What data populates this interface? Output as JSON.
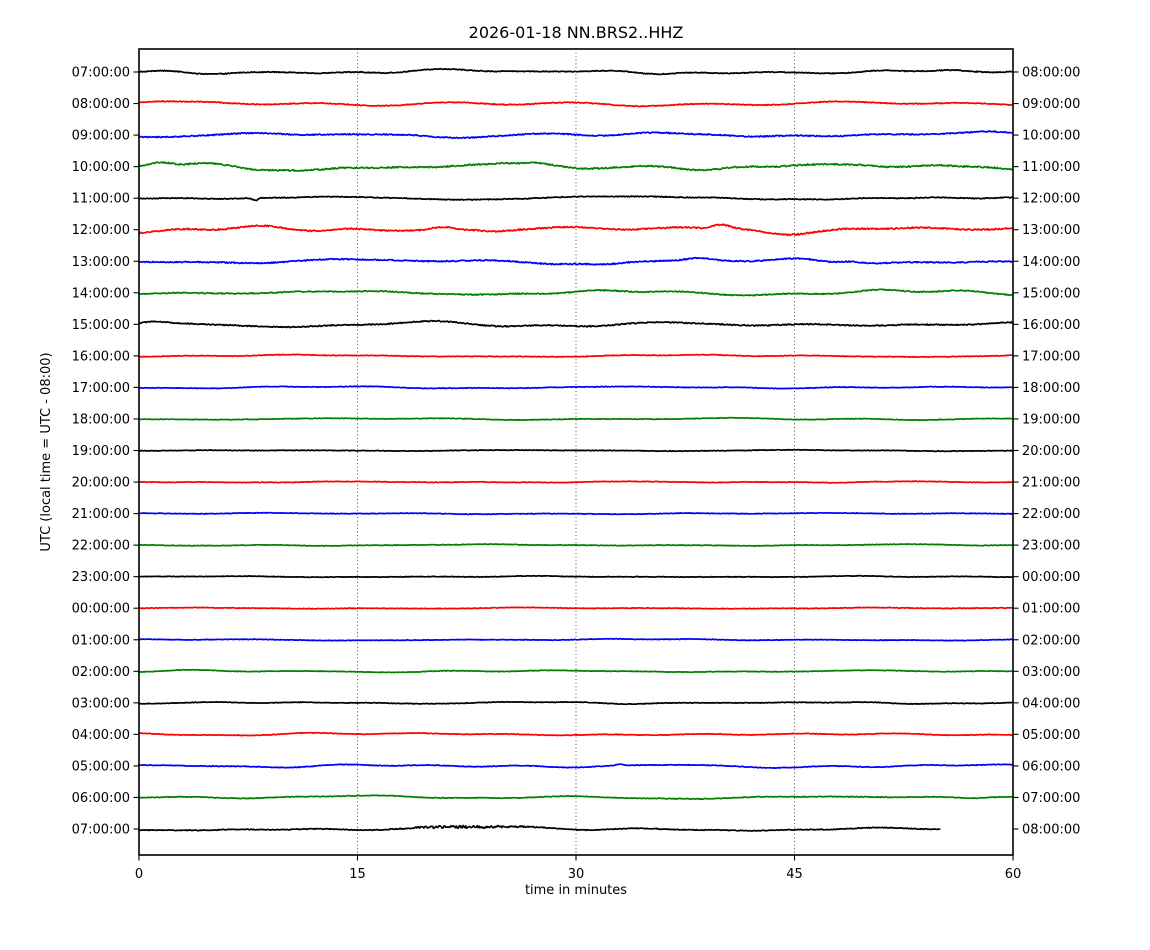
{
  "figure": {
    "title": "2026-01-18 NN.BRS2..HHZ",
    "xlabel": "time in minutes",
    "ylabel": "UTC (local time = UTC - 08:00)"
  },
  "palette": {
    "black": "#000000",
    "red": "#ff0000",
    "blue": "#0000ff",
    "green": "#008000",
    "grid": "#3a3a3a",
    "frame": "#000000",
    "background": "#ffffff"
  },
  "chart_data": {
    "type": "line",
    "subtype": "seismogram_dayplot",
    "title": "2026-01-18 NN.BRS2..HHZ",
    "date": "2026-01-18",
    "station_id": "NN.BRS2..HHZ",
    "xlabel": "time in minutes",
    "ylabel": "UTC (local time = UTC - 08:00)",
    "x_range_minutes": [
      0,
      60
    ],
    "x_ticks": [
      0,
      15,
      30,
      45,
      60
    ],
    "x_gridlines": [
      15,
      30,
      45
    ],
    "minutes_per_row": 60,
    "color_cycle": [
      "black",
      "red",
      "blue",
      "green"
    ],
    "left_axis_meaning": "row start time (UTC)",
    "right_axis_meaning": "row end time (UTC + 01:00)",
    "rows": [
      {
        "utc_left": "07:00:00",
        "utc_right": "08:00:00",
        "color": "black",
        "rel_amp": 2.2,
        "end_min": 60,
        "features": [
          {
            "at": 2,
            "w": 2.0,
            "a": 1.0
          },
          {
            "at": 22,
            "w": 1.5,
            "a": 1.5
          }
        ]
      },
      {
        "utc_left": "08:00:00",
        "utc_right": "09:00:00",
        "color": "red",
        "rel_amp": 2.2,
        "end_min": 60,
        "features": [
          {
            "at": 1,
            "w": 1.5,
            "a": 1.2
          },
          {
            "at": 30,
            "w": 8.0,
            "a": -1.0
          }
        ]
      },
      {
        "utc_left": "09:00:00",
        "utc_right": "10:00:00",
        "color": "blue",
        "rel_amp": 2.8,
        "end_min": 60,
        "features": [
          {
            "at": 40,
            "w": 2.0,
            "a": 1.5
          },
          {
            "at": 58,
            "w": 2.0,
            "a": 2.0
          }
        ]
      },
      {
        "utc_left": "10:00:00",
        "utc_right": "11:00:00",
        "color": "green",
        "rel_amp": 3.5,
        "end_min": 60,
        "features": [
          {
            "at": 1.5,
            "w": 1.0,
            "a": 4.0
          },
          {
            "at": 11,
            "w": 3.0,
            "a": -2.0
          },
          {
            "at": 25,
            "w": 1.0,
            "a": 1.5
          },
          {
            "at": 27,
            "w": 0.8,
            "a": 1.2
          }
        ]
      },
      {
        "utc_left": "11:00:00",
        "utc_right": "12:00:00",
        "color": "black",
        "rel_amp": 2.2,
        "end_min": 60,
        "features": [
          {
            "at": 8,
            "w": 0.25,
            "a": -2.5
          },
          {
            "at": 30,
            "w": 4.0,
            "a": 1.0
          }
        ]
      },
      {
        "utc_left": "12:00:00",
        "utc_right": "13:00:00",
        "color": "red",
        "rel_amp": 3.5,
        "end_min": 60,
        "features": [
          {
            "at": 21,
            "w": 1.2,
            "a": 4.0
          },
          {
            "at": 23,
            "w": 1.0,
            "a": 2.0
          },
          {
            "at": 38,
            "w": 2.0,
            "a": 2.0
          },
          {
            "at": 40,
            "w": 0.9,
            "a": 4.5
          },
          {
            "at": 44,
            "w": 1.5,
            "a": -1.5
          }
        ]
      },
      {
        "utc_left": "13:00:00",
        "utc_right": "14:00:00",
        "color": "blue",
        "rel_amp": 3.0,
        "end_min": 60,
        "features": [
          {
            "at": 32,
            "w": 1.5,
            "a": -2.5
          },
          {
            "at": 38.5,
            "w": 1.0,
            "a": 2.0
          },
          {
            "at": 47,
            "w": 1.0,
            "a": -1.5
          },
          {
            "at": 49,
            "w": 0.8,
            "a": 1.2
          }
        ]
      },
      {
        "utc_left": "14:00:00",
        "utc_right": "15:00:00",
        "color": "green",
        "rel_amp": 2.6,
        "end_min": 60,
        "features": [
          {
            "at": 5,
            "w": 2.0,
            "a": 1.2
          },
          {
            "at": 57,
            "w": 2.0,
            "a": 1.2
          }
        ]
      },
      {
        "utc_left": "15:00:00",
        "utc_right": "16:00:00",
        "color": "black",
        "rel_amp": 2.8,
        "end_min": 60,
        "features": [
          {
            "at": 1,
            "w": 1.2,
            "a": 2.5
          },
          {
            "at": 10,
            "w": 3.0,
            "a": -1.5
          },
          {
            "at": 42,
            "w": 2.0,
            "a": -1.0
          }
        ]
      },
      {
        "utc_left": "16:00:00",
        "utc_right": "17:00:00",
        "color": "red",
        "rel_amp": 1.6,
        "end_min": 60,
        "features": []
      },
      {
        "utc_left": "17:00:00",
        "utc_right": "18:00:00",
        "color": "blue",
        "rel_amp": 1.1,
        "end_min": 60,
        "features": []
      },
      {
        "utc_left": "18:00:00",
        "utc_right": "19:00:00",
        "color": "green",
        "rel_amp": 1.1,
        "end_min": 60,
        "features": []
      },
      {
        "utc_left": "19:00:00",
        "utc_right": "20:00:00",
        "color": "black",
        "rel_amp": 0.7,
        "end_min": 60,
        "features": []
      },
      {
        "utc_left": "20:00:00",
        "utc_right": "21:00:00",
        "color": "red",
        "rel_amp": 0.7,
        "end_min": 60,
        "features": []
      },
      {
        "utc_left": "21:00:00",
        "utc_right": "22:00:00",
        "color": "blue",
        "rel_amp": 0.7,
        "end_min": 60,
        "features": []
      },
      {
        "utc_left": "22:00:00",
        "utc_right": "23:00:00",
        "color": "green",
        "rel_amp": 0.9,
        "end_min": 60,
        "features": []
      },
      {
        "utc_left": "23:00:00",
        "utc_right": "00:00:00",
        "color": "black",
        "rel_amp": 0.7,
        "end_min": 60,
        "features": []
      },
      {
        "utc_left": "00:00:00",
        "utc_right": "01:00:00",
        "color": "red",
        "rel_amp": 0.7,
        "end_min": 60,
        "features": []
      },
      {
        "utc_left": "01:00:00",
        "utc_right": "02:00:00",
        "color": "blue",
        "rel_amp": 0.9,
        "end_min": 60,
        "features": []
      },
      {
        "utc_left": "02:00:00",
        "utc_right": "03:00:00",
        "color": "green",
        "rel_amp": 1.2,
        "end_min": 60,
        "features": []
      },
      {
        "utc_left": "03:00:00",
        "utc_right": "04:00:00",
        "color": "black",
        "rel_amp": 1.2,
        "end_min": 60,
        "features": []
      },
      {
        "utc_left": "04:00:00",
        "utc_right": "05:00:00",
        "color": "red",
        "rel_amp": 1.6,
        "end_min": 60,
        "features": [
          {
            "at": 11,
            "w": 2.5,
            "a": 2.0
          }
        ]
      },
      {
        "utc_left": "05:00:00",
        "utc_right": "06:00:00",
        "color": "blue",
        "rel_amp": 1.6,
        "end_min": 60,
        "features": [
          {
            "at": 33,
            "w": 0.3,
            "a": 1.5
          },
          {
            "at": 44,
            "w": 3.0,
            "a": -1.0
          }
        ]
      },
      {
        "utc_left": "06:00:00",
        "utc_right": "07:00:00",
        "color": "green",
        "rel_amp": 1.8,
        "end_min": 60,
        "features": [
          {
            "at": 30,
            "w": 4.0,
            "a": 1.0
          },
          {
            "at": 57,
            "w": 1.5,
            "a": -1.5
          }
        ]
      },
      {
        "utc_left": "07:00:00",
        "utc_right": "08:00:00",
        "color": "black",
        "rel_amp": 2.0,
        "end_min": 55,
        "features": [
          {
            "at": 25,
            "w": 3.0,
            "a": 1.5
          }
        ],
        "hf_burst": {
          "from": 17,
          "to": 28,
          "a": 1.3
        }
      }
    ]
  }
}
